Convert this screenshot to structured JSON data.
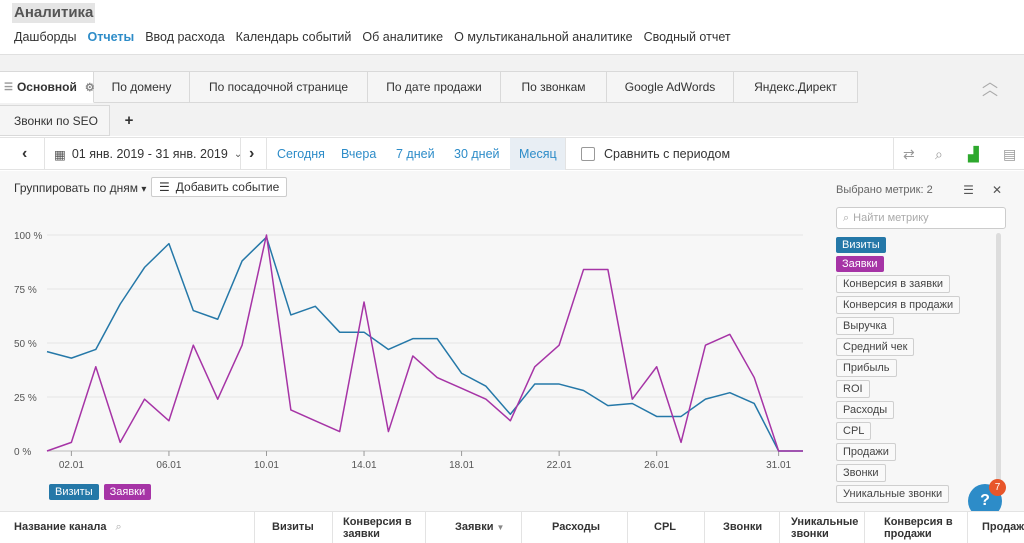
{
  "app_title": "Аналитика",
  "top_nav": [
    {
      "label": "Дашборды",
      "active": false
    },
    {
      "label": "Отчеты",
      "active": true
    },
    {
      "label": "Ввод расхода",
      "active": false
    },
    {
      "label": "Календарь событий",
      "active": false
    },
    {
      "label": "Об аналитике",
      "active": false
    },
    {
      "label": "О мультиканальной аналитике",
      "active": false
    },
    {
      "label": "Сводный отчет",
      "active": false
    }
  ],
  "report_tabs": {
    "active": "Основной",
    "items": [
      "По домену",
      "По посадочной странице",
      "По дате продажи",
      "По звонкам",
      "Google AdWords",
      "Яндекс.Директ"
    ],
    "row2": [
      "Звонки по SEO"
    ],
    "add_label": "+"
  },
  "date_bar": {
    "range": "01 янв. 2019 - 31 янв. 2019",
    "periods": [
      "Сегодня",
      "Вчера",
      "7 дней",
      "30 дней",
      "Месяц"
    ],
    "active_period": "Месяц",
    "compare_label": "Сравнить с периодом"
  },
  "controls": {
    "group_by": "Группировать по дням",
    "add_event": "Добавить событие"
  },
  "metrics_panel": {
    "selected_label": "Выбрано метрик: 2",
    "search_placeholder": "Найти метрику",
    "selected": [
      "Визиты",
      "Заявки"
    ],
    "available": [
      "Конверсия в заявки",
      "Конверсия в продажи",
      "Выручка",
      "Средний чек",
      "Прибыль",
      "ROI",
      "Расходы",
      "CPL",
      "Продажи",
      "Звонки",
      "Уникальные звонки"
    ]
  },
  "chart_data": {
    "type": "line",
    "y_ticks": [
      "100 %",
      "75 %",
      "50 %",
      "25 %",
      "0 %"
    ],
    "ylim": [
      0,
      100
    ],
    "x_tick_labels": [
      "02.01",
      "06.01",
      "10.01",
      "14.01",
      "18.01",
      "22.01",
      "26.01",
      "31.01"
    ],
    "x_tick_days": [
      2,
      6,
      10,
      14,
      18,
      22,
      26,
      31
    ],
    "x_days": [
      1,
      2,
      3,
      4,
      5,
      6,
      7,
      8,
      9,
      10,
      11,
      12,
      13,
      14,
      15,
      16,
      17,
      18,
      19,
      20,
      21,
      22,
      23,
      24,
      25,
      26,
      27,
      28,
      29,
      30,
      31,
      32
    ],
    "series": [
      {
        "name": "Визиты",
        "color": "#2578a8",
        "values": [
          46,
          43,
          47,
          68,
          85,
          96,
          65,
          61,
          88,
          99,
          63,
          67,
          55,
          55,
          47,
          52,
          52,
          36,
          30,
          17,
          31,
          31,
          28,
          21,
          22,
          16,
          16,
          24,
          27,
          22,
          0,
          0
        ]
      },
      {
        "name": "Заявки",
        "color": "#a634a6",
        "values": [
          0,
          4,
          39,
          4,
          24,
          14,
          49,
          24,
          49,
          100,
          19,
          14,
          9,
          69,
          9,
          44,
          34,
          29,
          24,
          14,
          39,
          49,
          84,
          84,
          24,
          39,
          4,
          49,
          54,
          34,
          0,
          0
        ]
      }
    ]
  },
  "legend": [
    "Визиты",
    "Заявки"
  ],
  "help": {
    "label": "?",
    "badge": "7"
  },
  "table_headers": [
    "Название канала",
    "Визиты",
    "Конверсия в заявки",
    "Заявки",
    "Расходы",
    "CPL",
    "Звонки",
    "Уникальные звонки",
    "Конверсия в продажи",
    "Продажи"
  ],
  "sort_marker": "▼"
}
